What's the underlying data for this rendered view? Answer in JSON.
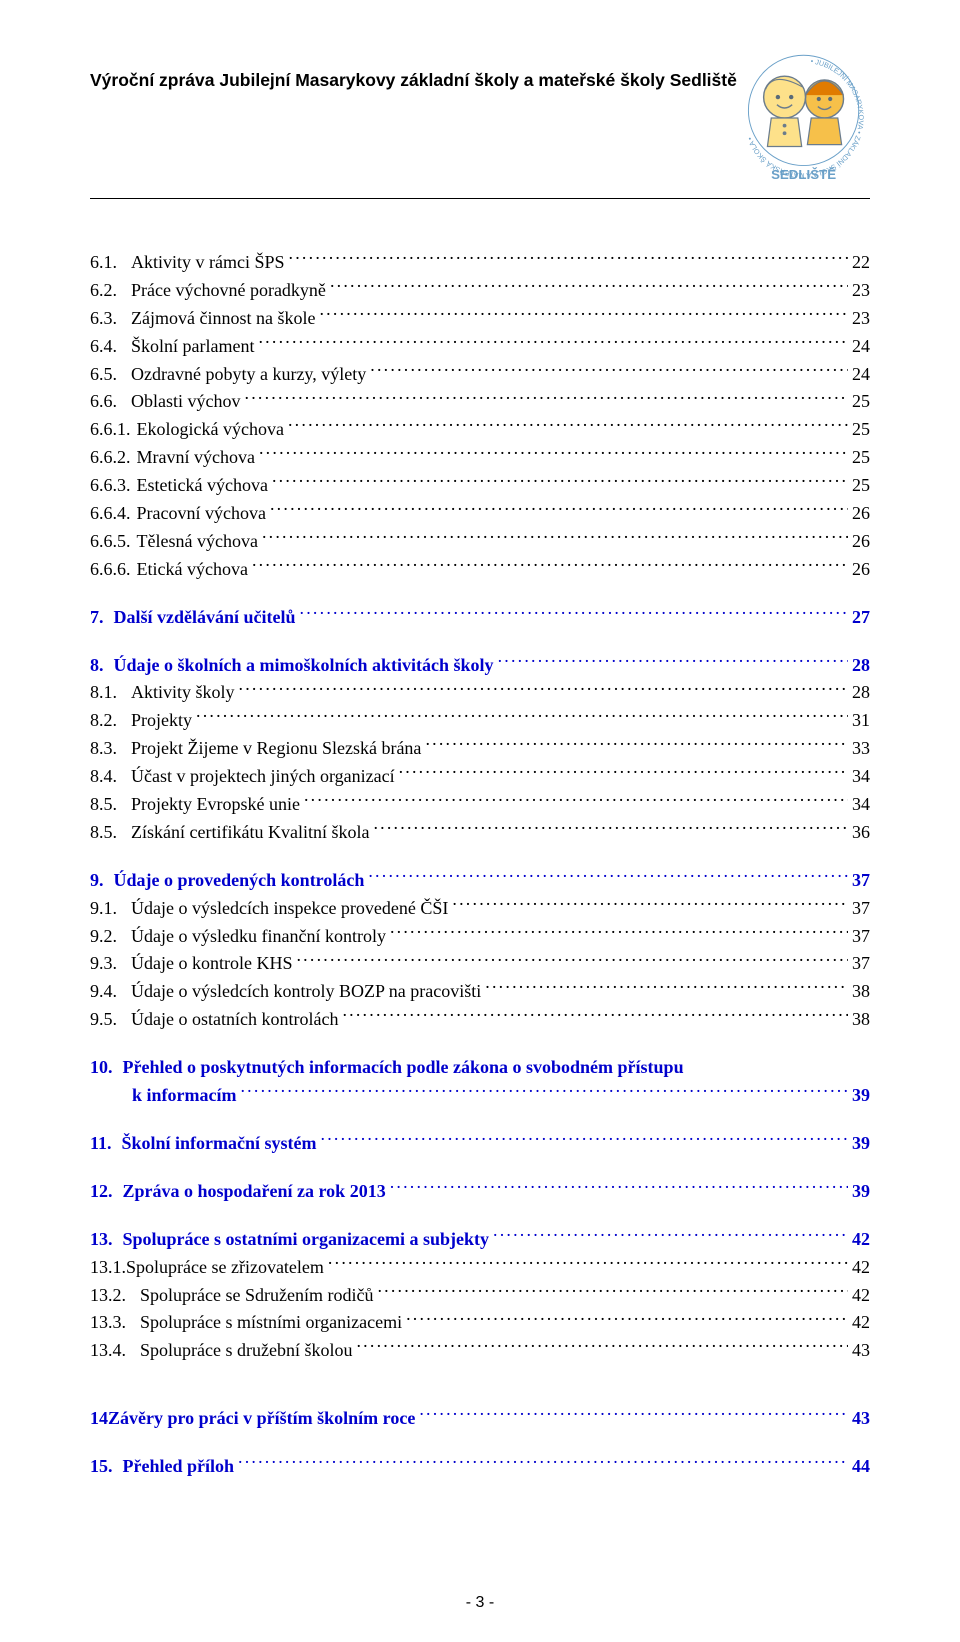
{
  "header": {
    "title": "Výroční zpráva Jubilejní Masarykovy základní školy a mateřské školy Sedliště",
    "logo_text_top": "JUBILEJNÍ MASARYKOVA",
    "logo_text_right": "ZÁKLADNÍ ŠKOLA",
    "logo_text_bottom": "A MATEŘSKÁ ŠKOLA",
    "logo_caption": "SEDLIŠTĚ",
    "colors": {
      "ring": "#6aa0c8",
      "boy_fill": "#fde18a",
      "girl_fill": "#f6c04a",
      "outline": "#6b7c8c",
      "caption": "#6aa0c8"
    }
  },
  "toc": [
    {
      "num": "6.1.",
      "label": "Aktivity v rámci ŠPS",
      "page": "22",
      "level": 1
    },
    {
      "num": "6.2.",
      "label": "Práce výchovné poradkyně",
      "page": "23",
      "level": 1
    },
    {
      "num": "6.3.",
      "label": "Zájmová činnost na škole",
      "page": "23",
      "level": 1
    },
    {
      "num": "6.4.",
      "label": "Školní parlament",
      "page": "24",
      "level": 1
    },
    {
      "num": "6.5.",
      "label": "Ozdravné pobyty a kurzy, výlety",
      "page": "24",
      "level": 1
    },
    {
      "num": "6.6.",
      "label": "Oblasti výchov",
      "page": "25",
      "level": 1
    },
    {
      "num": "6.6.1.",
      "label": "Ekologická výchova",
      "page": "25",
      "level": 2
    },
    {
      "num": "6.6.2.",
      "label": "Mravní výchova",
      "page": "25",
      "level": 2
    },
    {
      "num": "6.6.3.",
      "label": "Estetická výchova",
      "page": "25",
      "level": 2
    },
    {
      "num": "6.6.4.",
      "label": "Pracovní výchova",
      "page": "26",
      "level": 2
    },
    {
      "num": "6.6.5.",
      "label": "Tělesná výchova",
      "page": "26",
      "level": 2
    },
    {
      "num": "6.6.6.",
      "label": "Etická výchova",
      "page": "26",
      "level": 2
    },
    {
      "gap": true
    },
    {
      "num": "7.",
      "label": "Další vzdělávání učitelů",
      "page": "27",
      "bold": true,
      "link": true,
      "level": 0
    },
    {
      "gap": true
    },
    {
      "num": "8.",
      "label": "Údaje o školních a mimoškolních aktivitách školy",
      "page": "28",
      "bold": true,
      "link": true,
      "level": 0
    },
    {
      "num": "8.1.",
      "label": "Aktivity školy",
      "page": "28",
      "level": 1
    },
    {
      "num": "8.2.",
      "label": "Projekty",
      "page": "31",
      "level": 1
    },
    {
      "num": "8.3.",
      "label": "Projekt Žijeme v Regionu Slezská brána",
      "page": "33",
      "level": 1
    },
    {
      "num": "8.4.",
      "label": "Účast v projektech jiných organizací",
      "page": "34",
      "level": 1
    },
    {
      "num": "8.5.",
      "label": "Projekty Evropské unie",
      "page": "34",
      "level": 1
    },
    {
      "num": "8.5.",
      "label": "Získání certifikátu Kvalitní škola",
      "page": "36",
      "level": 1
    },
    {
      "gap": true
    },
    {
      "num": "9.",
      "label": "Údaje o provedených kontrolách",
      "page": "37",
      "bold": true,
      "link": true,
      "level": 0
    },
    {
      "num": "9.1.",
      "label": "Údaje o výsledcích inspekce provedené ČŠI",
      "page": "37",
      "level": 1
    },
    {
      "num": "9.2.",
      "label": "Údaje o výsledku finanční kontroly",
      "page": "37",
      "level": 1
    },
    {
      "num": "9.3.",
      "label": "Údaje o kontrole KHS",
      "page": "37",
      "level": 1
    },
    {
      "num": "9.4.",
      "label": "Údaje o výsledcích kontroly BOZP na pracovišti",
      "page": "38",
      "level": 1
    },
    {
      "num": "9.5.",
      "label": "Údaje o ostatních kontrolách",
      "page": "38",
      "level": 1
    },
    {
      "gap": true
    },
    {
      "num": "10.",
      "label": "Přehled o poskytnutých informacích podle zákona o svobodném přístupu",
      "label2": "k informacím",
      "page": "39",
      "bold": true,
      "link": true,
      "level": 0,
      "wrap": true
    },
    {
      "gap": true
    },
    {
      "num": "11.",
      "label": "Školní informační systém",
      "page": "39",
      "bold": true,
      "link": true,
      "level": 0
    },
    {
      "gap": true
    },
    {
      "num": "12.",
      "label": "Zpráva o hospodaření za rok 2013",
      "page": "39",
      "bold": true,
      "link": true,
      "level": 0
    },
    {
      "gap": true
    },
    {
      "num": "13.",
      "label": "Spolupráce s ostatními organizacemi a subjekty",
      "page": "42",
      "bold": true,
      "link": true,
      "level": 0
    },
    {
      "num": "13.1.",
      "label": "Spolupráce se zřizovatelem",
      "page": "42",
      "level": 1,
      "nosep": true
    },
    {
      "num": "13.2.",
      "label": "Spolupráce se Sdružením rodičů",
      "page": "42",
      "level": 1
    },
    {
      "num": "13.3.",
      "label": "Spolupráce s místními organizacemi",
      "page": "42",
      "level": 1
    },
    {
      "num": "13.4.",
      "label": "Spolupráce s družební školou",
      "page": "43",
      "level": 1
    },
    {
      "gap": true
    },
    {
      "gap": true
    },
    {
      "num": "14",
      "label": "Závěry pro práci v příštím školním roce",
      "page": "43",
      "bold": true,
      "link": true,
      "level": 0,
      "nbsp": true
    },
    {
      "gap": true
    },
    {
      "num": "15.",
      "label": "Přehled příloh",
      "page": "44",
      "bold": true,
      "link": true,
      "level": 0
    }
  ],
  "footer": {
    "page_number": "- 3 -"
  }
}
